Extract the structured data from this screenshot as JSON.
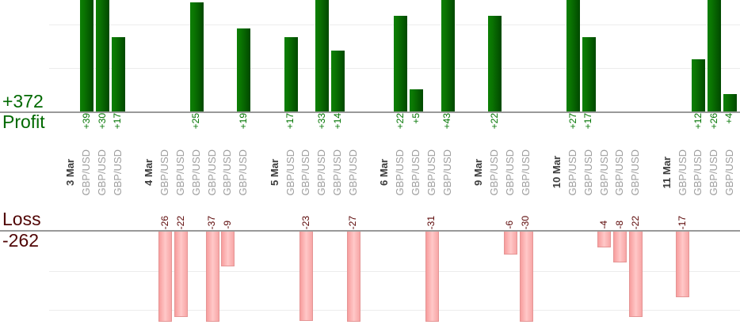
{
  "chart_data": {
    "type": "bar",
    "title": "",
    "orientation": "vertical",
    "ticker": "GBP/USD",
    "summary": {
      "profit_total": "+372",
      "profit_label": "Profit",
      "loss_label": "Loss",
      "loss_total": "-262"
    },
    "groups": [
      {
        "date": "3 Mar",
        "trades": [
          {
            "label": "+39",
            "value": 39
          },
          {
            "label": "+30",
            "value": 30
          },
          {
            "label": "+17",
            "value": 17
          }
        ]
      },
      {
        "date": "4 Mar",
        "trades": [
          {
            "label": "-26",
            "value": -26
          },
          {
            "label": "-22",
            "value": -22
          },
          {
            "label": "+25",
            "value": 25
          },
          {
            "label": "-37",
            "value": -37
          },
          {
            "label": "-9",
            "value": -9
          },
          {
            "label": "+19",
            "value": 19
          }
        ]
      },
      {
        "date": "5 Mar",
        "trades": [
          {
            "label": "+17",
            "value": 17
          },
          {
            "label": "-23",
            "value": -23
          },
          {
            "label": "+33",
            "value": 33
          },
          {
            "label": "+14",
            "value": 14
          },
          {
            "label": "-27",
            "value": -27
          }
        ]
      },
      {
        "date": "6 Mar",
        "trades": [
          {
            "label": "+22",
            "value": 22
          },
          {
            "label": "+5",
            "value": 5
          },
          {
            "label": "-31",
            "value": -31
          },
          {
            "label": "+43",
            "value": 43
          }
        ]
      },
      {
        "date": "9 Mar",
        "trades": [
          {
            "label": "+22",
            "value": 22
          },
          {
            "label": "-6",
            "value": -6
          },
          {
            "label": "-30",
            "value": -30
          }
        ]
      },
      {
        "date": "10 Mar",
        "trades": [
          {
            "label": "+27",
            "value": 27
          },
          {
            "label": "+17",
            "value": 17
          },
          {
            "label": "-4",
            "value": -4
          },
          {
            "label": "-8",
            "value": -8
          },
          {
            "label": "-22",
            "value": -22
          }
        ]
      },
      {
        "date": "11 Mar",
        "trades": [
          {
            "label": "-17",
            "value": -17
          },
          {
            "label": "+12",
            "value": 12
          },
          {
            "label": "+26",
            "value": 26
          },
          {
            "label": "+4",
            "value": 4
          }
        ]
      }
    ],
    "axes": {
      "gridline_unit": 10,
      "profit_axis_gridlines": [
        10,
        20
      ],
      "loss_axis_gridlines": [
        10,
        20
      ],
      "profit_bars_clipped_above": 25,
      "loss_bars_clipped_below": 23
    },
    "colors": {
      "profit_bar_light": "#0d8005",
      "profit_bar_dark": "#014800",
      "profit_value_text": "#007400",
      "profit_total_text": "#006900",
      "loss_bar_light": "#ffc8c8",
      "loss_bar_dark": "#f79d9d",
      "loss_value_text": "#5a0505",
      "loss_total_text": "#500505",
      "date_text": "#3c3c3c",
      "ticker_text": "#9e9e9e",
      "axis_line": "#999999",
      "gridline": "#ececec",
      "background": "#ffffff"
    },
    "legend": "none",
    "grid": "on"
  }
}
